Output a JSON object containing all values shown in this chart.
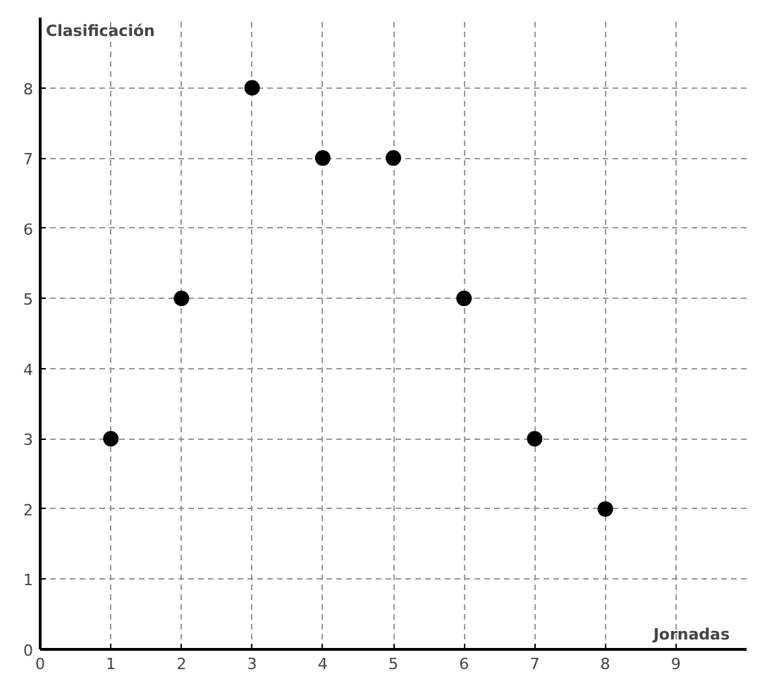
{
  "chart_data": {
    "type": "scatter",
    "xlabel": "Jornadas",
    "ylabel": "Clasificación",
    "x": [
      1,
      2,
      3,
      4,
      5,
      6,
      7,
      8
    ],
    "series": [
      {
        "color": "#000000",
        "values": [
          3,
          5,
          8,
          7,
          7,
          5,
          3,
          2
        ]
      }
    ],
    "xlim": [
      0,
      10
    ],
    "ylim": [
      0,
      9
    ],
    "xticks": [
      0,
      1,
      2,
      3,
      4,
      5,
      6,
      7,
      8,
      9
    ],
    "yticks": [
      0,
      1,
      2,
      3,
      4,
      5,
      6,
      7,
      8
    ],
    "grid": true,
    "marker": "circle",
    "line_style": "dashed"
  }
}
